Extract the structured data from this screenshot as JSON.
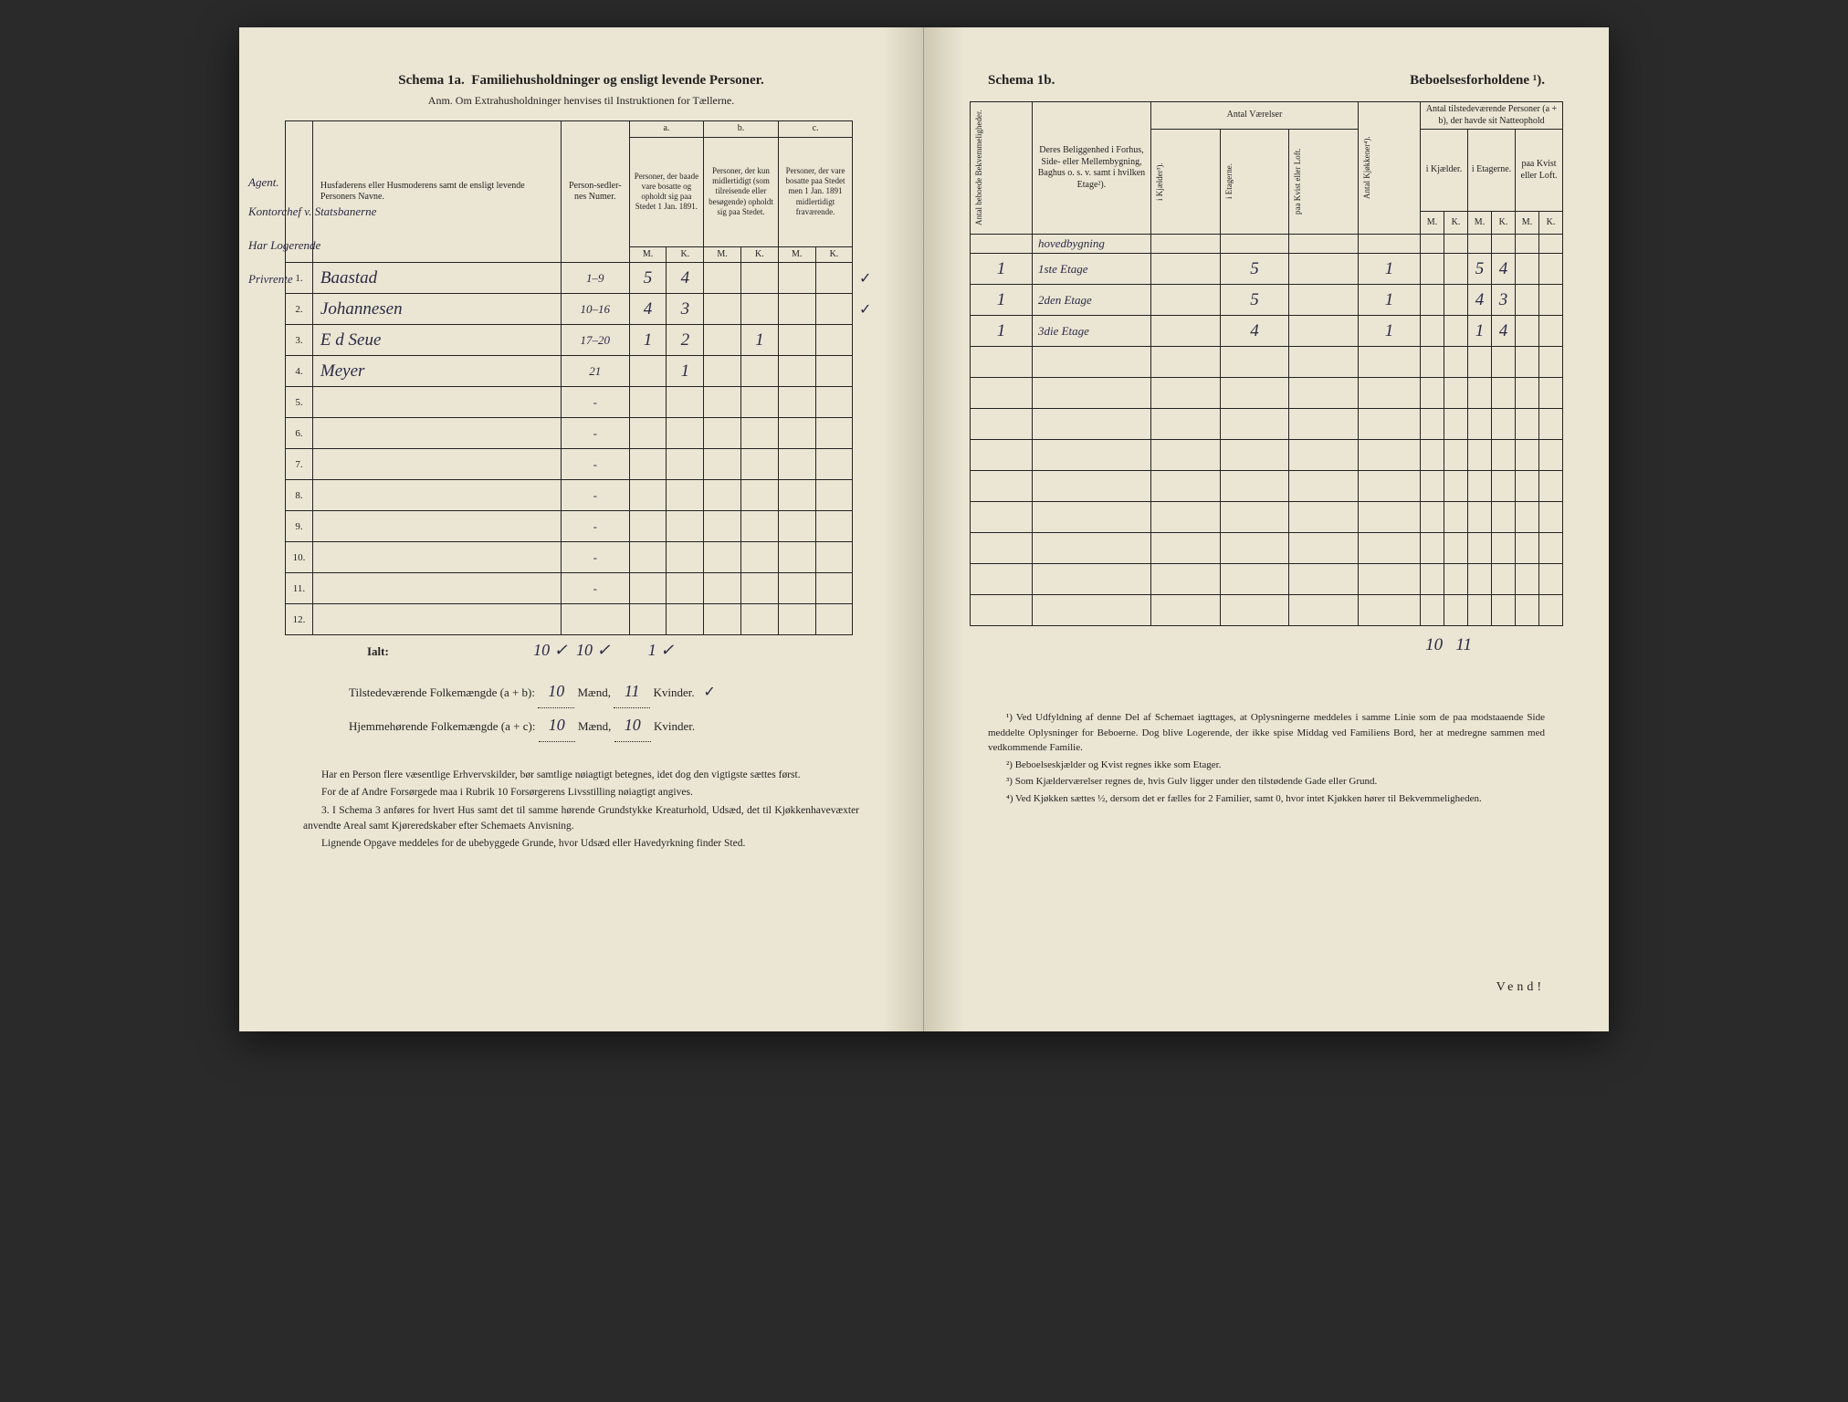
{
  "left": {
    "title_a": "Schema 1a.",
    "title_b": "Familiehusholdninger og ensligt levende Personer.",
    "anm": "Anm. Om Extrahusholdninger henvises til Instruktionen for Tællerne.",
    "header": {
      "col1": "Husfaderens eller Husmoderens samt de ensligt levende Personers Navne.",
      "col2": "Person-sedler-nes Numer.",
      "group_a": "a.",
      "a_text": "Personer, der baade vare bosatte og opholdt sig paa Stedet 1 Jan. 1891.",
      "group_b": "b.",
      "b_text": "Personer, der kun midlertidigt (som tilreisende eller besøgende) opholdt sig paa Stedet.",
      "group_c": "c.",
      "c_text": "Personer, der vare bosatte paa Stedet men 1 Jan. 1891 midlertidigt fraværende.",
      "m": "M.",
      "k": "K."
    },
    "margin_labels": [
      "Agent.",
      "Kontorchef v. Statsbanerne",
      "Har Logerende",
      "Privrente"
    ],
    "rows": [
      {
        "n": "1.",
        "name": "Baastad",
        "num": "1–9",
        "am": "5",
        "ak": "4",
        "bm": "",
        "bk": "",
        "cm": "",
        "ck": "",
        "mark": "✓"
      },
      {
        "n": "2.",
        "name": "Johannesen",
        "num": "10–16",
        "am": "4",
        "ak": "3",
        "bm": "",
        "bk": "",
        "cm": "",
        "ck": "",
        "mark": "✓"
      },
      {
        "n": "3.",
        "name": "E d Seue",
        "num": "17–20",
        "am": "1",
        "ak": "2",
        "bm": "",
        "bk": "1",
        "cm": "",
        "ck": "",
        "mark": ""
      },
      {
        "n": "4.",
        "name": "Meyer",
        "num": "21",
        "am": "",
        "ak": "1",
        "bm": "",
        "bk": "",
        "cm": "",
        "ck": "",
        "mark": ""
      },
      {
        "n": "5.",
        "name": "",
        "num": "-",
        "am": "",
        "ak": "",
        "bm": "",
        "bk": "",
        "cm": "",
        "ck": ""
      },
      {
        "n": "6.",
        "name": "",
        "num": "-",
        "am": "",
        "ak": "",
        "bm": "",
        "bk": "",
        "cm": "",
        "ck": ""
      },
      {
        "n": "7.",
        "name": "",
        "num": "-",
        "am": "",
        "ak": "",
        "bm": "",
        "bk": "",
        "cm": "",
        "ck": ""
      },
      {
        "n": "8.",
        "name": "",
        "num": "-",
        "am": "",
        "ak": "",
        "bm": "",
        "bk": "",
        "cm": "",
        "ck": ""
      },
      {
        "n": "9.",
        "name": "",
        "num": "-",
        "am": "",
        "ak": "",
        "bm": "",
        "bk": "",
        "cm": "",
        "ck": ""
      },
      {
        "n": "10.",
        "name": "",
        "num": "-",
        "am": "",
        "ak": "",
        "bm": "",
        "bk": "",
        "cm": "",
        "ck": ""
      },
      {
        "n": "11.",
        "name": "",
        "num": "-",
        "am": "",
        "ak": "",
        "bm": "",
        "bk": "",
        "cm": "",
        "ck": ""
      },
      {
        "n": "12.",
        "name": "",
        "num": "",
        "am": "",
        "ak": "",
        "bm": "",
        "bk": "",
        "cm": "",
        "ck": ""
      }
    ],
    "ialt": "Ialt:",
    "ialt_m": "10 ✓",
    "ialt_k": "10 ✓",
    "ialt_bk": "1 ✓",
    "totline1a": "Tilstedeværende Folkemængde (a + b): ",
    "totline1m": "10",
    "totline1_mid": " Mænd, ",
    "totline1k": "11",
    "totline1_end": " Kvinder.",
    "totline1_check": "✓",
    "totline2a": "Hjemmehørende Folkemængde (a + c): ",
    "totline2m": "10",
    "totline2_mid": " Mænd, ",
    "totline2k": "10",
    "totline2_end": " Kvinder.",
    "notes": [
      "Har en Person flere væsentlige Erhvervskilder, bør samtlige nøiagtigt betegnes, idet dog den vigtigste sættes først.",
      "For de af Andre Forsørgede maa i Rubrik 10 Forsørgerens Livsstilling nøiagtigt angives.",
      "3. I Schema 3 anføres for hvert Hus samt det til samme hørende Grundstykke Kreaturhold, Udsæd, det til Kjøkkenhavevæxter anvendte Areal samt Kjøreredskaber efter Schemaets Anvisning.",
      "Lignende Opgave meddeles for de ubebyggede Grunde, hvor Udsæd eller Havedyrkning finder Sted."
    ]
  },
  "right": {
    "title_a": "Schema 1b.",
    "title_b": "Beboelsesforholdene ¹).",
    "header": {
      "v1": "Antal beboede Bekvemmeligheder.",
      "col2": "Deres Beliggenhed i Forhus, Side- eller Mellembygning, Baghus o. s. v. samt i hvilken Etage²).",
      "rooms": "Antal Værelser",
      "v3": "i Kjælder³).",
      "v4": "i Etagerne.",
      "v5": "paa Kvist eller Loft.",
      "v6": "Antal Kjøkkener⁴).",
      "persons": "Antal tilstedeværende Personer (a + b), der havde sit Natteophold",
      "p1": "i Kjælder.",
      "p2": "i Etagerne.",
      "p3": "paa Kvist eller Loft.",
      "m": "M.",
      "k": "K."
    },
    "hoved": "hovedbygning",
    "rows": [
      {
        "n": "1",
        "floor": "1ste Etage",
        "kj": "",
        "et": "5",
        "kv": "",
        "kk": "1",
        "km": "",
        "kkk": "",
        "em": "5",
        "ek": "4",
        "lm": "",
        "lk": ""
      },
      {
        "n": "1",
        "floor": "2den Etage",
        "kj": "",
        "et": "5",
        "kv": "",
        "kk": "1",
        "km": "",
        "kkk": "",
        "em": "4",
        "ek": "3",
        "lm": "",
        "lk": ""
      },
      {
        "n": "1",
        "floor": "3die Etage",
        "kj": "",
        "et": "4",
        "kv": "",
        "kk": "1",
        "km": "",
        "kkk": "",
        "em": "1",
        "ek": "4",
        "lm": "",
        "lk": ""
      }
    ],
    "empty_rows": 9,
    "tot_m": "10",
    "tot_k": "11",
    "footnotes": [
      "¹) Ved Udfyldning af denne Del af Schemaet iagttages, at Oplysningerne meddeles i samme Linie som de paa modstaaende Side meddelte Oplysninger for Beboerne. Dog blive Logerende, der ikke spise Middag ved Familiens Bord, her at medregne sammen med vedkommende Familie.",
      "²) Beboelseskjælder og Kvist regnes ikke som Etager.",
      "³) Som Kjælderværelser regnes de, hvis Gulv ligger under den tilstødende Gade eller Grund.",
      "⁴) Ved Kjøkken sættes ½, dersom det er fælles for 2 Familier, samt 0, hvor intet Kjøkken hører til Bekvemmeligheden."
    ],
    "vend": "Vend!"
  }
}
